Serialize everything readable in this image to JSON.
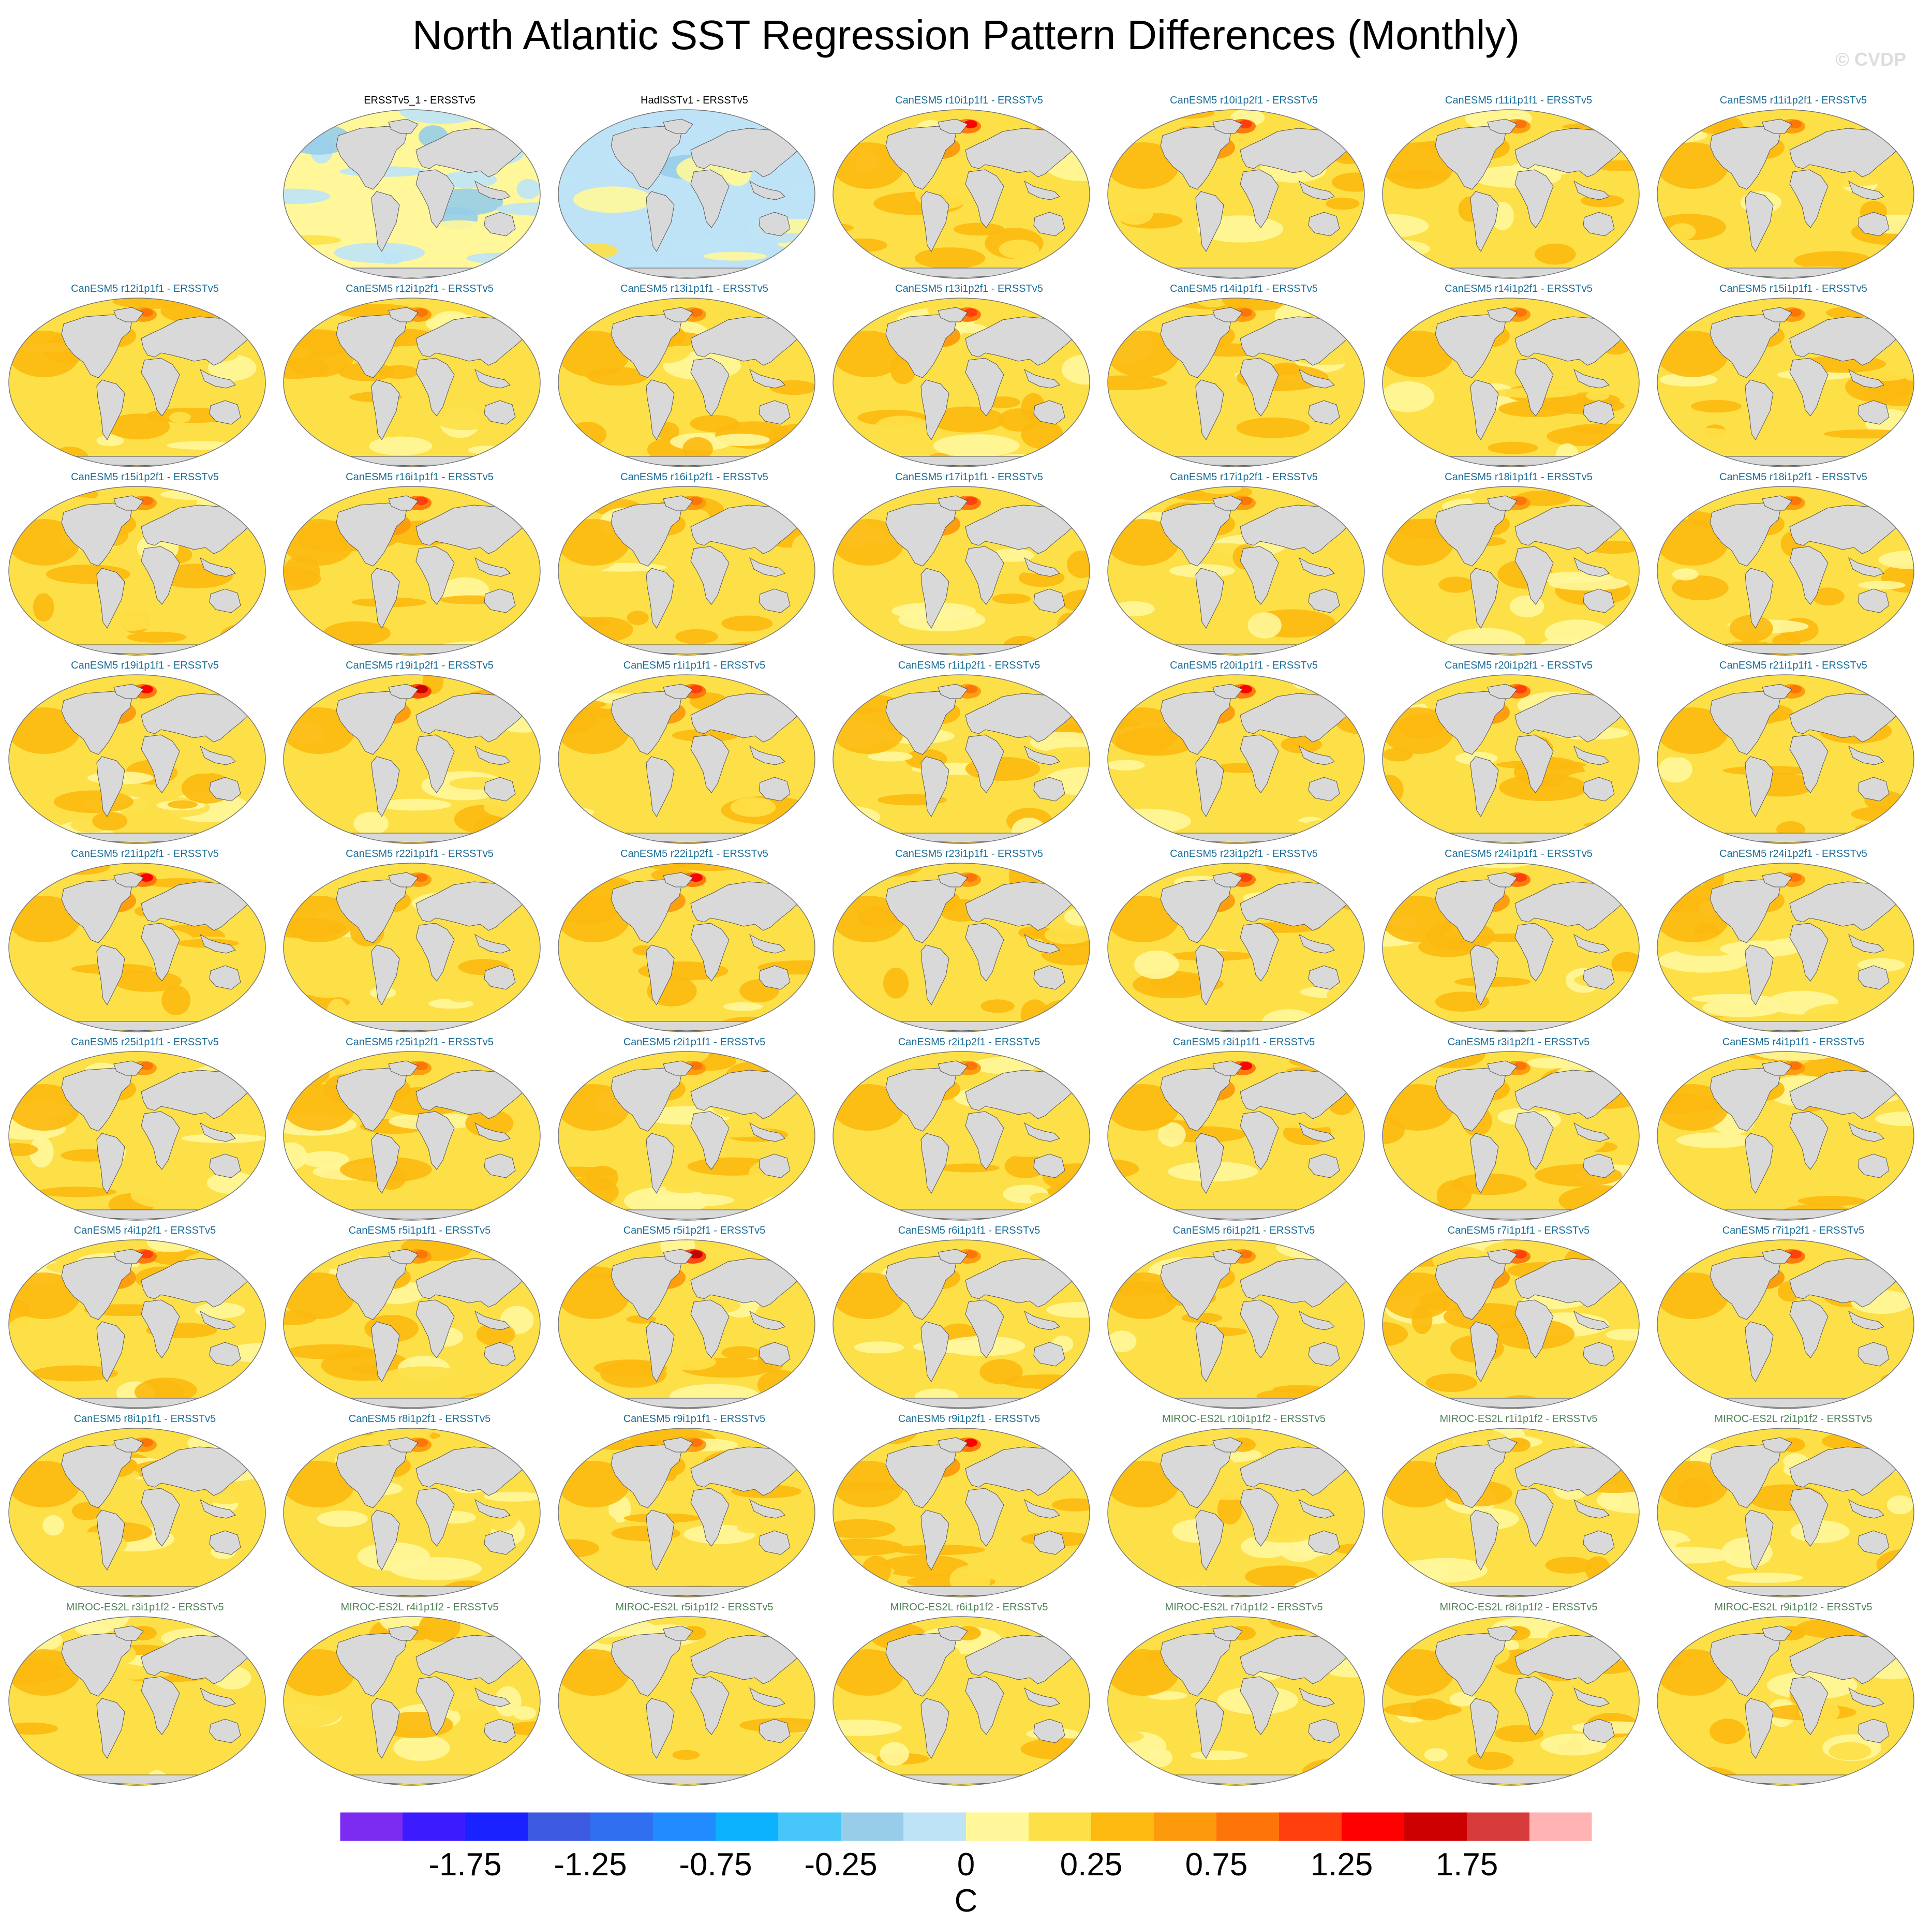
{
  "title": "North Atlantic SST Regression Pattern Differences (Monthly)",
  "watermark": "© CVDP",
  "chart_data": {
    "type": "heatmap",
    "title": "North Atlantic SST Regression Pattern Differences (Monthly)",
    "unit": "C",
    "projection": "global ellipse map, land masked in gray",
    "colorbar": {
      "colors": [
        "#7b2cf0",
        "#3c1cff",
        "#1a23ff",
        "#3c5ae0",
        "#2f6ff0",
        "#208cff",
        "#0db2ff",
        "#46c6f9",
        "#97cde9",
        "#bee3f7",
        "#fff79a",
        "#fde047",
        "#fcb90f",
        "#fc9a0c",
        "#fd7409",
        "#ff3f0c",
        "#ff0000",
        "#cc0000",
        "#d73a3a",
        "#ffb3b3"
      ],
      "tick_labels": [
        "-1.75",
        "-1.25",
        "-0.75",
        "-0.25",
        "0",
        "0.25",
        "0.75",
        "1.25",
        "1.75"
      ],
      "range": [
        -2.25,
        2.25
      ]
    },
    "label_colors": {
      "obs": "#000000",
      "CanESM5": "#1a6d98",
      "MIROC-ES2L": "#4e8256"
    },
    "panels": [
      {
        "label": "ERSSTv5_1 - ERSSTv5",
        "group": "obs",
        "mean": 0.05,
        "hot": 0.0
      },
      {
        "label": "HadISSTv1 - ERSSTv5",
        "group": "obs",
        "mean": -0.05,
        "hot": 0.0
      },
      {
        "label": "CanESM5 r10i1p1f1 - ERSSTv5",
        "group": "CanESM5",
        "mean": 0.35,
        "hot": 1.4
      },
      {
        "label": "CanESM5 r10i1p2f1 - ERSSTv5",
        "group": "CanESM5",
        "mean": 0.35,
        "hot": 1.3
      },
      {
        "label": "CanESM5 r11i1p1f1 - ERSSTv5",
        "group": "CanESM5",
        "mean": 0.35,
        "hot": 1.1
      },
      {
        "label": "CanESM5 r11i1p2f1 - ERSSTv5",
        "group": "CanESM5",
        "mean": 0.35,
        "hot": 1.1
      },
      {
        "label": "CanESM5 r12i1p1f1 - ERSSTv5",
        "group": "CanESM5",
        "mean": 0.35,
        "hot": 1.1
      },
      {
        "label": "CanESM5 r12i1p2f1 - ERSSTv5",
        "group": "CanESM5",
        "mean": 0.35,
        "hot": 1.1
      },
      {
        "label": "CanESM5 r13i1p1f1 - ERSSTv5",
        "group": "CanESM5",
        "mean": 0.35,
        "hot": 1.1
      },
      {
        "label": "CanESM5 r13i1p2f1 - ERSSTv5",
        "group": "CanESM5",
        "mean": 0.35,
        "hot": 1.3
      },
      {
        "label": "CanESM5 r14i1p1f1 - ERSSTv5",
        "group": "CanESM5",
        "mean": 0.35,
        "hot": 1.1
      },
      {
        "label": "CanESM5 r14i1p2f1 - ERSSTv5",
        "group": "CanESM5",
        "mean": 0.35,
        "hot": 1.1
      },
      {
        "label": "CanESM5 r15i1p1f1 - ERSSTv5",
        "group": "CanESM5",
        "mean": 0.35,
        "hot": 1.1
      },
      {
        "label": "CanESM5 r15i1p2f1 - ERSSTv5",
        "group": "CanESM5",
        "mean": 0.35,
        "hot": 1.0
      },
      {
        "label": "CanESM5 r16i1p1f1 - ERSSTv5",
        "group": "CanESM5",
        "mean": 0.35,
        "hot": 1.3
      },
      {
        "label": "CanESM5 r16i1p2f1 - ERSSTv5",
        "group": "CanESM5",
        "mean": 0.35,
        "hot": 1.1
      },
      {
        "label": "CanESM5 r17i1p1f1 - ERSSTv5",
        "group": "CanESM5",
        "mean": 0.35,
        "hot": 1.3
      },
      {
        "label": "CanESM5 r17i1p2f1 - ERSSTv5",
        "group": "CanESM5",
        "mean": 0.35,
        "hot": 1.0
      },
      {
        "label": "CanESM5 r18i1p1f1 - ERSSTv5",
        "group": "CanESM5",
        "mean": 0.35,
        "hot": 1.0
      },
      {
        "label": "CanESM5 r18i1p2f1 - ERSSTv5",
        "group": "CanESM5",
        "mean": 0.35,
        "hot": 1.1
      },
      {
        "label": "CanESM5 r19i1p1f1 - ERSSTv5",
        "group": "CanESM5",
        "mean": 0.35,
        "hot": 1.4
      },
      {
        "label": "CanESM5 r19i1p2f1 - ERSSTv5",
        "group": "CanESM5",
        "mean": 0.35,
        "hot": 1.6
      },
      {
        "label": "CanESM5 r1i1p1f1 - ERSSTv5",
        "group": "CanESM5",
        "mean": 0.35,
        "hot": 1.3
      },
      {
        "label": "CanESM5 r1i1p2f1 - ERSSTv5",
        "group": "CanESM5",
        "mean": 0.35,
        "hot": 1.1
      },
      {
        "label": "CanESM5 r20i1p1f1 - ERSSTv5",
        "group": "CanESM5",
        "mean": 0.35,
        "hot": 1.4
      },
      {
        "label": "CanESM5 r20i1p2f1 - ERSSTv5",
        "group": "CanESM5",
        "mean": 0.35,
        "hot": 1.3
      },
      {
        "label": "CanESM5 r21i1p1f1 - ERSSTv5",
        "group": "CanESM5",
        "mean": 0.35,
        "hot": 1.1
      },
      {
        "label": "CanESM5 r21i1p2f1 - ERSSTv5",
        "group": "CanESM5",
        "mean": 0.35,
        "hot": 1.4
      },
      {
        "label": "CanESM5 r22i1p1f1 - ERSSTv5",
        "group": "CanESM5",
        "mean": 0.35,
        "hot": 1.1
      },
      {
        "label": "CanESM5 r22i1p2f1 - ERSSTv5",
        "group": "CanESM5",
        "mean": 0.35,
        "hot": 1.4
      },
      {
        "label": "CanESM5 r23i1p1f1 - ERSSTv5",
        "group": "CanESM5",
        "mean": 0.35,
        "hot": 1.1
      },
      {
        "label": "CanESM5 r23i1p2f1 - ERSSTv5",
        "group": "CanESM5",
        "mean": 0.35,
        "hot": 1.3
      },
      {
        "label": "CanESM5 r24i1p1f1 - ERSSTv5",
        "group": "CanESM5",
        "mean": 0.35,
        "hot": 1.3
      },
      {
        "label": "CanESM5 r24i1p2f1 - ERSSTv5",
        "group": "CanESM5",
        "mean": 0.35,
        "hot": 1.1
      },
      {
        "label": "CanESM5 r25i1p1f1 - ERSSTv5",
        "group": "CanESM5",
        "mean": 0.35,
        "hot": 1.1
      },
      {
        "label": "CanESM5 r25i1p2f1 - ERSSTv5",
        "group": "CanESM5",
        "mean": 0.35,
        "hot": 1.1
      },
      {
        "label": "CanESM5 r2i1p1f1 - ERSSTv5",
        "group": "CanESM5",
        "mean": 0.35,
        "hot": 1.1
      },
      {
        "label": "CanESM5 r2i1p2f1 - ERSSTv5",
        "group": "CanESM5",
        "mean": 0.35,
        "hot": 1.1
      },
      {
        "label": "CanESM5 r3i1p1f1 - ERSSTv5",
        "group": "CanESM5",
        "mean": 0.35,
        "hot": 1.4
      },
      {
        "label": "CanESM5 r3i1p2f1 - ERSSTv5",
        "group": "CanESM5",
        "mean": 0.35,
        "hot": 1.1
      },
      {
        "label": "CanESM5 r4i1p1f1 - ERSSTv5",
        "group": "CanESM5",
        "mean": 0.35,
        "hot": 1.1
      },
      {
        "label": "CanESM5 r4i1p2f1 - ERSSTv5",
        "group": "CanESM5",
        "mean": 0.35,
        "hot": 1.3
      },
      {
        "label": "CanESM5 r5i1p1f1 - ERSSTv5",
        "group": "CanESM5",
        "mean": 0.35,
        "hot": 1.1
      },
      {
        "label": "CanESM5 r5i1p2f1 - ERSSTv5",
        "group": "CanESM5",
        "mean": 0.35,
        "hot": 1.6
      },
      {
        "label": "CanESM5 r6i1p1f1 - ERSSTv5",
        "group": "CanESM5",
        "mean": 0.35,
        "hot": 1.1
      },
      {
        "label": "CanESM5 r6i1p2f1 - ERSSTv5",
        "group": "CanESM5",
        "mean": 0.35,
        "hot": 1.1
      },
      {
        "label": "CanESM5 r7i1p1f1 - ERSSTv5",
        "group": "CanESM5",
        "mean": 0.35,
        "hot": 1.3
      },
      {
        "label": "CanESM5 r7i1p2f1 - ERSSTv5",
        "group": "CanESM5",
        "mean": 0.35,
        "hot": 1.3
      },
      {
        "label": "CanESM5 r8i1p1f1 - ERSSTv5",
        "group": "CanESM5",
        "mean": 0.35,
        "hot": 1.1
      },
      {
        "label": "CanESM5 r8i1p2f1 - ERSSTv5",
        "group": "CanESM5",
        "mean": 0.35,
        "hot": 1.1
      },
      {
        "label": "CanESM5 r9i1p1f1 - ERSSTv5",
        "group": "CanESM5",
        "mean": 0.35,
        "hot": 1.1
      },
      {
        "label": "CanESM5 r9i1p2f1 - ERSSTv5",
        "group": "CanESM5",
        "mean": 0.35,
        "hot": 1.4
      },
      {
        "label": "MIROC-ES2L r10i1p1f2 - ERSSTv5",
        "group": "MIROC-ES2L",
        "mean": 0.25,
        "hot": 0.6
      },
      {
        "label": "MIROC-ES2L r1i1p1f2 - ERSSTv5",
        "group": "MIROC-ES2L",
        "mean": 0.25,
        "hot": 0.6
      },
      {
        "label": "MIROC-ES2L r2i1p1f2 - ERSSTv5",
        "group": "MIROC-ES2L",
        "mean": 0.25,
        "hot": 0.6
      },
      {
        "label": "MIROC-ES2L r3i1p1f2 - ERSSTv5",
        "group": "MIROC-ES2L",
        "mean": 0.25,
        "hot": 0.6
      },
      {
        "label": "MIROC-ES2L r4i1p1f2 - ERSSTv5",
        "group": "MIROC-ES2L",
        "mean": 0.25,
        "hot": 0.6
      },
      {
        "label": "MIROC-ES2L r5i1p1f2 - ERSSTv5",
        "group": "MIROC-ES2L",
        "mean": 0.25,
        "hot": 0.6
      },
      {
        "label": "MIROC-ES2L r6i1p1f2 - ERSSTv5",
        "group": "MIROC-ES2L",
        "mean": 0.25,
        "hot": 0.6
      },
      {
        "label": "MIROC-ES2L r7i1p1f2 - ERSSTv5",
        "group": "MIROC-ES2L",
        "mean": 0.25,
        "hot": 0.6
      },
      {
        "label": "MIROC-ES2L r8i1p1f2 - ERSSTv5",
        "group": "MIROC-ES2L",
        "mean": 0.25,
        "hot": 0.6
      },
      {
        "label": "MIROC-ES2L r9i1p1f2 - ERSSTv5",
        "group": "MIROC-ES2L",
        "mean": 0.25,
        "hot": 0.6
      }
    ]
  }
}
